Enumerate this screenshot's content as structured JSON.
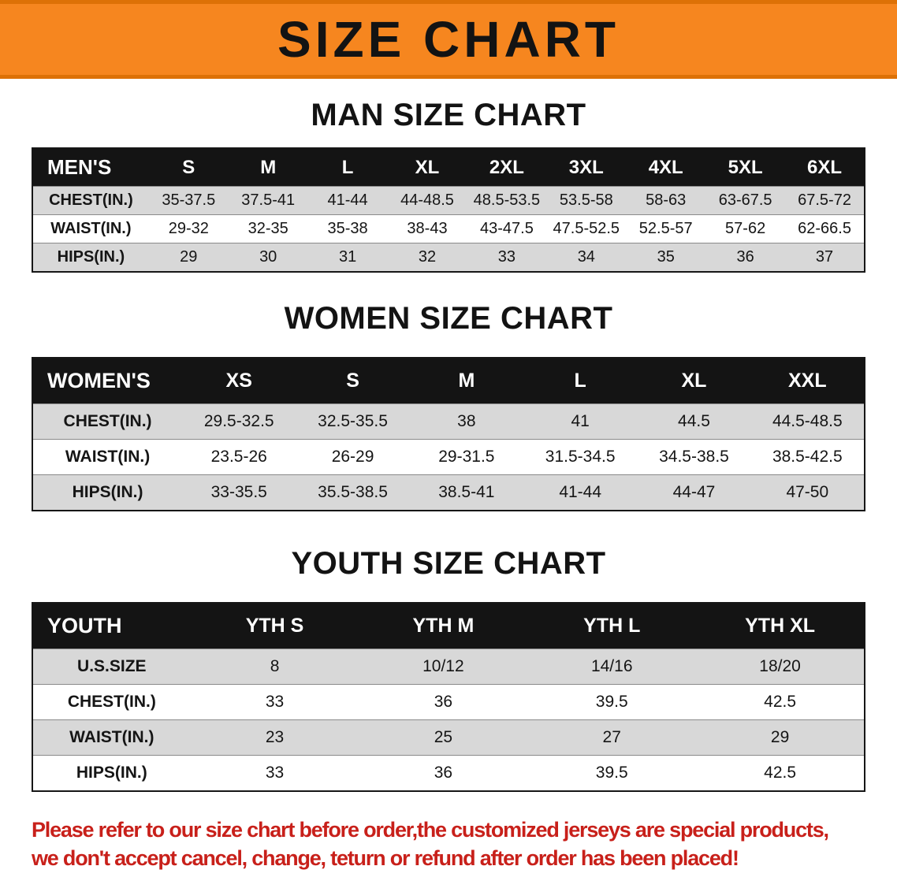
{
  "banner": {
    "title": "SIZE CHART"
  },
  "colors": {
    "banner_orange": "#F6861F",
    "banner_edge": "#DD7106",
    "header_black": "#141414",
    "row_gray": "#D8D8D8",
    "disclaimer_red": "#C8201A"
  },
  "chart_data": [
    {
      "type": "table",
      "title": "MAN SIZE CHART",
      "header": [
        "MEN'S",
        "S",
        "M",
        "L",
        "XL",
        "2XL",
        "3XL",
        "4XL",
        "5XL",
        "6XL"
      ],
      "rows": [
        [
          "CHEST(IN.)",
          "35-37.5",
          "37.5-41",
          "41-44",
          "44-48.5",
          "48.5-53.5",
          "53.5-58",
          "58-63",
          "63-67.5",
          "67.5-72"
        ],
        [
          "WAIST(IN.)",
          "29-32",
          "32-35",
          "35-38",
          "38-43",
          "43-47.5",
          "47.5-52.5",
          "52.5-57",
          "57-62",
          "62-66.5"
        ],
        [
          "HIPS(IN.)",
          "29",
          "30",
          "31",
          "32",
          "33",
          "34",
          "35",
          "36",
          "37"
        ]
      ]
    },
    {
      "type": "table",
      "title": "WOMEN SIZE CHART",
      "header": [
        "WOMEN'S",
        "XS",
        "S",
        "M",
        "L",
        "XL",
        "XXL"
      ],
      "rows": [
        [
          "CHEST(IN.)",
          "29.5-32.5",
          "32.5-35.5",
          "38",
          "41",
          "44.5",
          "44.5-48.5"
        ],
        [
          "WAIST(IN.)",
          "23.5-26",
          "26-29",
          "29-31.5",
          "31.5-34.5",
          "34.5-38.5",
          "38.5-42.5"
        ],
        [
          "HIPS(IN.)",
          "33-35.5",
          "35.5-38.5",
          "38.5-41",
          "41-44",
          "44-47",
          "47-50"
        ]
      ]
    },
    {
      "type": "table",
      "title": "YOUTH SIZE CHART",
      "header": [
        "YOUTH",
        "YTH S",
        "YTH M",
        "YTH L",
        "YTH XL"
      ],
      "rows": [
        [
          "U.S.SIZE",
          "8",
          "10/12",
          "14/16",
          "18/20"
        ],
        [
          "CHEST(IN.)",
          "33",
          "36",
          "39.5",
          "42.5"
        ],
        [
          "WAIST(IN.)",
          "23",
          "25",
          "27",
          "29"
        ],
        [
          "HIPS(IN.)",
          "33",
          "36",
          "39.5",
          "42.5"
        ]
      ]
    }
  ],
  "disclaimer": {
    "line1": "Please refer to our size chart before order,the customized jerseys are special products,",
    "line2": "we don't accept cancel, change, teturn or refund after order has been placed!"
  }
}
